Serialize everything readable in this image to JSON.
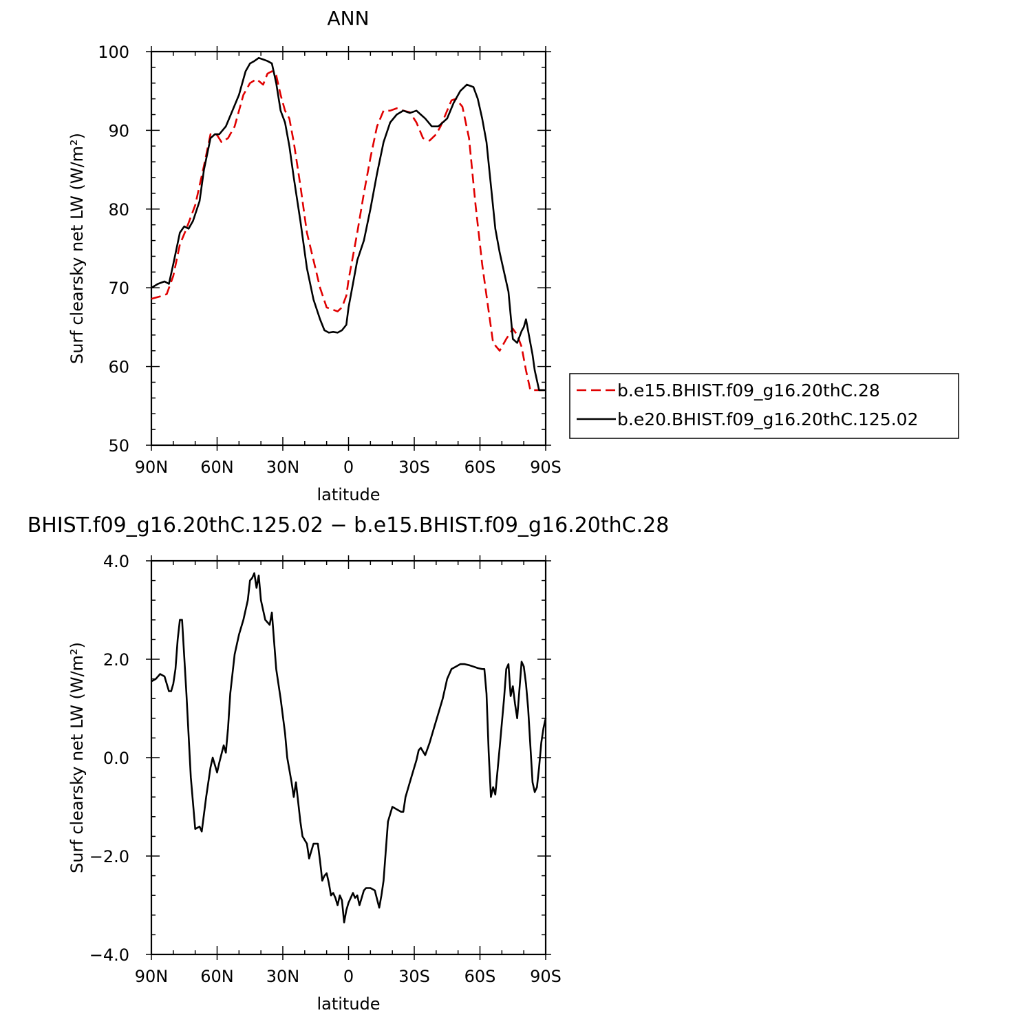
{
  "chart_data": [
    {
      "type": "line",
      "title": "ANN",
      "xlabel": "latitude",
      "ylabel": "Surf clearsky net LW (W/m²)",
      "xlim": [
        90,
        -90
      ],
      "ylim": [
        50,
        100
      ],
      "x_ticks": [
        {
          "value": 90,
          "label": "90N"
        },
        {
          "value": 60,
          "label": "60N"
        },
        {
          "value": 30,
          "label": "30N"
        },
        {
          "value": 0,
          "label": "0"
        },
        {
          "value": -30,
          "label": "30S"
        },
        {
          "value": -60,
          "label": "60S"
        },
        {
          "value": -90,
          "label": "90S"
        }
      ],
      "y_ticks": [
        {
          "value": 100,
          "label": "100"
        },
        {
          "value": 90,
          "label": "90"
        },
        {
          "value": 80,
          "label": "80"
        },
        {
          "value": 70,
          "label": "70"
        },
        {
          "value": 60,
          "label": "60"
        },
        {
          "value": 50,
          "label": "50"
        }
      ],
      "legend_position": "right",
      "series": [
        {
          "name": "b.e15.BHIST.f09_g16.20thC.28",
          "color": "#e00000",
          "dash": "dashed",
          "x": [
            90,
            86,
            83,
            80,
            77,
            74,
            70,
            66,
            63,
            60,
            58,
            55,
            52,
            48,
            45,
            42,
            39,
            37,
            35,
            33,
            31,
            29,
            27,
            25,
            22,
            19,
            16,
            13,
            10,
            8,
            5,
            3,
            1,
            0,
            -2,
            -4,
            -7,
            -10,
            -13,
            -16,
            -19,
            -22,
            -25,
            -28,
            -31,
            -34,
            -37,
            -40,
            -42,
            -45,
            -47,
            -49,
            -52,
            -55,
            -58,
            -61,
            -63,
            -66,
            -69,
            -72,
            -75,
            -77,
            -79,
            -81,
            -83,
            -85,
            -87,
            -89,
            -90
          ],
          "y": [
            68.6,
            68.9,
            69.2,
            71.5,
            75.5,
            77.5,
            80.5,
            85.5,
            89.5,
            89.4,
            88.5,
            89.0,
            90.5,
            94.5,
            96.0,
            96.5,
            95.8,
            97.2,
            97.5,
            97.0,
            94.5,
            92.5,
            91.5,
            88.5,
            83.0,
            77.0,
            73.5,
            70.0,
            67.5,
            67.3,
            67.0,
            67.5,
            69.0,
            71.0,
            74.0,
            77.0,
            82.0,
            86.5,
            90.5,
            92.5,
            92.5,
            92.8,
            92.5,
            92.3,
            91.0,
            89.0,
            88.7,
            89.5,
            90.5,
            92.5,
            93.8,
            94.0,
            93.0,
            89.0,
            80.5,
            73.0,
            69.0,
            63.0,
            62.0,
            63.5,
            64.8,
            64.0,
            62.5,
            59.5,
            57.0,
            57.0,
            57.0,
            57.0,
            57.0
          ]
        },
        {
          "name": "b.e20.BHIST.f09_g16.20thC.125.02",
          "color": "#000000",
          "dash": "solid",
          "x": [
            90,
            87,
            84,
            82,
            80,
            77,
            75,
            73,
            71,
            68,
            66,
            63,
            61,
            59,
            56,
            53,
            50,
            47,
            45,
            43,
            41,
            39,
            37,
            35,
            33,
            31,
            29,
            27,
            25,
            22,
            19,
            16,
            13,
            11,
            9,
            7,
            5,
            3,
            1,
            0,
            -2,
            -4,
            -7,
            -10,
            -13,
            -16,
            -19,
            -22,
            -25,
            -28,
            -31,
            -33,
            -35,
            -38,
            -41,
            -43,
            -45,
            -48,
            -51,
            -54,
            -57,
            -59,
            -61,
            -63,
            -65,
            -67,
            -69,
            -71,
            -73,
            -75,
            -77,
            -79,
            -80,
            -81,
            -83,
            -84,
            -85,
            -87,
            -89,
            -90
          ],
          "y": [
            70.0,
            70.5,
            70.8,
            70.5,
            73.0,
            77.0,
            77.8,
            77.5,
            78.5,
            81.0,
            85.0,
            89.0,
            89.5,
            89.5,
            90.5,
            92.5,
            94.5,
            97.5,
            98.5,
            98.8,
            99.2,
            99.0,
            98.8,
            98.5,
            96.0,
            92.5,
            91.0,
            88.0,
            84.0,
            78.5,
            72.5,
            68.5,
            66.0,
            64.6,
            64.3,
            64.4,
            64.3,
            64.6,
            65.3,
            67.5,
            70.5,
            73.5,
            76.0,
            80.0,
            84.5,
            88.5,
            91.0,
            92.0,
            92.5,
            92.2,
            92.5,
            92.0,
            91.5,
            90.5,
            90.5,
            91.0,
            91.5,
            93.5,
            95.0,
            95.8,
            95.5,
            94.0,
            91.5,
            88.5,
            83.0,
            77.5,
            74.5,
            72.0,
            69.5,
            63.5,
            63.0,
            64.5,
            65.0,
            66.0,
            63.0,
            61.5,
            59.5,
            57.0,
            57.0,
            57.0
          ]
        }
      ]
    },
    {
      "type": "line",
      "title": "BHIST.f09_g16.20thC.125.02 − b.e15.BHIST.f09_g16.20thC.28",
      "xlabel": "latitude",
      "ylabel": "Surf clearsky net LW (W/m²)",
      "xlim": [
        90,
        -90
      ],
      "ylim": [
        -4,
        4
      ],
      "x_ticks": [
        {
          "value": 90,
          "label": "90N"
        },
        {
          "value": 60,
          "label": "60N"
        },
        {
          "value": 30,
          "label": "30N"
        },
        {
          "value": 0,
          "label": "0"
        },
        {
          "value": -30,
          "label": "30S"
        },
        {
          "value": -60,
          "label": "60S"
        },
        {
          "value": -90,
          "label": "90S"
        }
      ],
      "y_ticks": [
        {
          "value": 4,
          "label": "4.0"
        },
        {
          "value": 2,
          "label": "2.0"
        },
        {
          "value": 0,
          "label": "0.0"
        },
        {
          "value": -2,
          "label": "−2.0"
        },
        {
          "value": -4,
          "label": "−4.0"
        }
      ],
      "series": [
        {
          "name": "",
          "color": "#000000",
          "dash": "solid",
          "x": [
            90,
            88,
            86,
            84,
            82,
            81,
            80,
            79,
            78,
            77,
            76,
            74,
            72,
            70,
            68,
            67,
            65,
            63,
            62,
            60,
            59,
            57,
            56,
            55,
            54,
            52,
            50,
            48,
            46,
            45,
            44,
            43,
            42,
            41,
            40,
            38,
            37,
            36,
            35,
            33,
            31,
            29,
            28,
            26,
            25,
            24,
            22,
            21,
            19,
            18,
            17,
            16,
            14,
            13,
            12,
            11,
            10,
            9,
            8,
            7,
            6,
            5,
            4,
            3,
            2,
            1,
            0,
            -1,
            -2,
            -3,
            -4,
            -5,
            -7,
            -8,
            -10,
            -12,
            -14,
            -15,
            -16,
            -18,
            -20,
            -22,
            -24,
            -25,
            -26,
            -28,
            -30,
            -31,
            -32,
            -33,
            -35,
            -37,
            -39,
            -41,
            -43,
            -45,
            -47,
            -49,
            -51,
            -53,
            -55,
            -57,
            -59,
            -61,
            -62,
            -63,
            -64,
            -65,
            -66,
            -67,
            -69,
            -71,
            -72,
            -73,
            -74,
            -75,
            -76,
            -77,
            -79,
            -80,
            -81,
            -82,
            -84,
            -85,
            -86,
            -87,
            -88,
            -89,
            -90
          ],
          "y": [
            1.55,
            1.6,
            1.7,
            1.65,
            1.35,
            1.35,
            1.5,
            1.8,
            2.4,
            2.8,
            2.8,
            1.3,
            -0.4,
            -1.45,
            -1.4,
            -1.5,
            -0.8,
            -0.2,
            0.0,
            -0.3,
            -0.1,
            0.25,
            0.1,
            0.6,
            1.3,
            2.1,
            2.5,
            2.8,
            3.2,
            3.6,
            3.65,
            3.75,
            3.45,
            3.7,
            3.2,
            2.8,
            2.75,
            2.7,
            2.95,
            1.8,
            1.2,
            0.5,
            0.0,
            -0.5,
            -0.8,
            -0.5,
            -1.3,
            -1.6,
            -1.75,
            -2.05,
            -1.9,
            -1.75,
            -1.75,
            -2.1,
            -2.5,
            -2.4,
            -2.35,
            -2.55,
            -2.8,
            -2.75,
            -2.85,
            -3.0,
            -2.8,
            -2.9,
            -3.35,
            -3.1,
            -2.95,
            -2.85,
            -2.75,
            -2.85,
            -2.8,
            -3.0,
            -2.7,
            -2.65,
            -2.65,
            -2.7,
            -3.05,
            -2.8,
            -2.5,
            -1.3,
            -1.0,
            -1.05,
            -1.1,
            -1.1,
            -0.8,
            -0.5,
            -0.2,
            -0.05,
            0.15,
            0.2,
            0.05,
            0.3,
            0.6,
            0.9,
            1.2,
            1.6,
            1.8,
            1.85,
            1.9,
            1.9,
            1.88,
            1.85,
            1.82,
            1.8,
            1.8,
            1.3,
            0.1,
            -0.8,
            -0.6,
            -0.75,
            0.2,
            1.2,
            1.8,
            1.9,
            1.25,
            1.45,
            1.1,
            0.8,
            1.95,
            1.85,
            1.5,
            1.0,
            -0.5,
            -0.7,
            -0.6,
            -0.2,
            0.3,
            0.6,
            0.8
          ]
        }
      ]
    }
  ]
}
